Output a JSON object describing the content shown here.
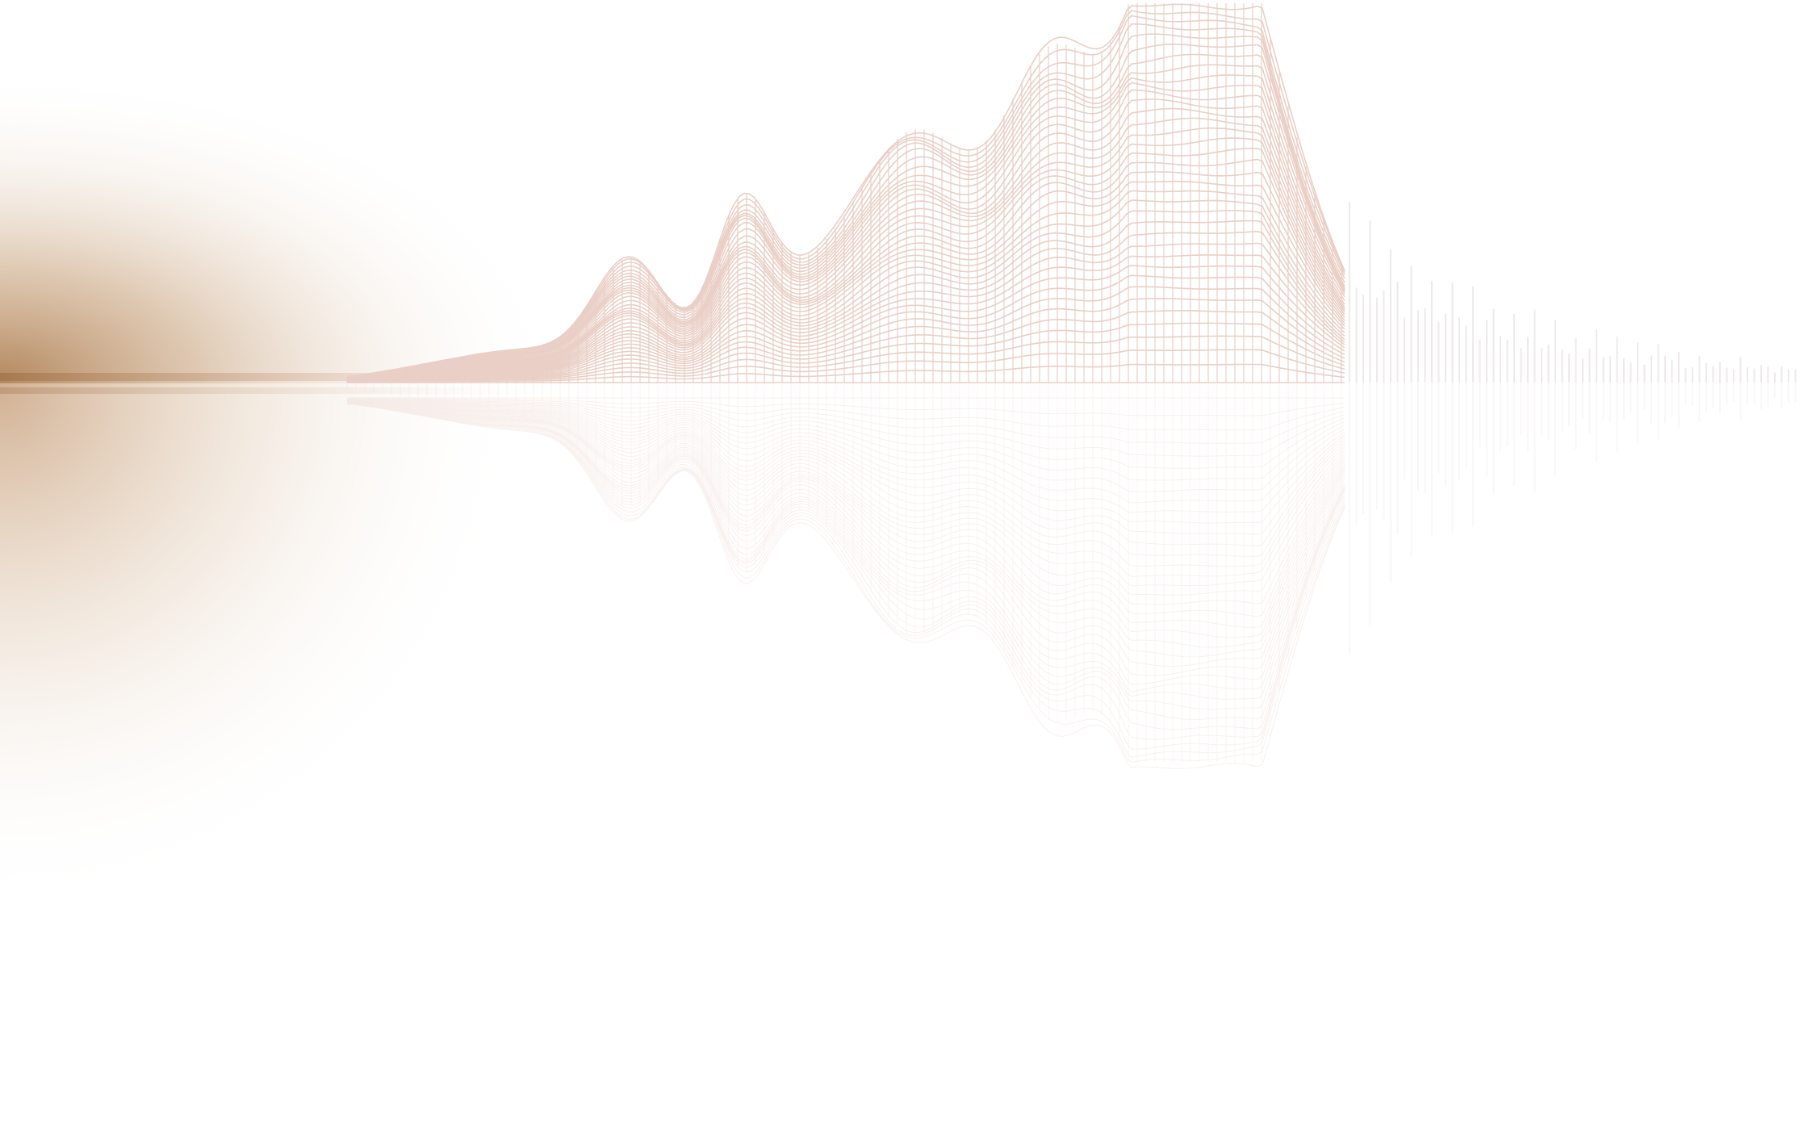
{
  "colors": {
    "background": "#ffffff",
    "glow": "#b08256",
    "wireframe": "#e9cfc6",
    "bars": "#eeeaea"
  }
}
